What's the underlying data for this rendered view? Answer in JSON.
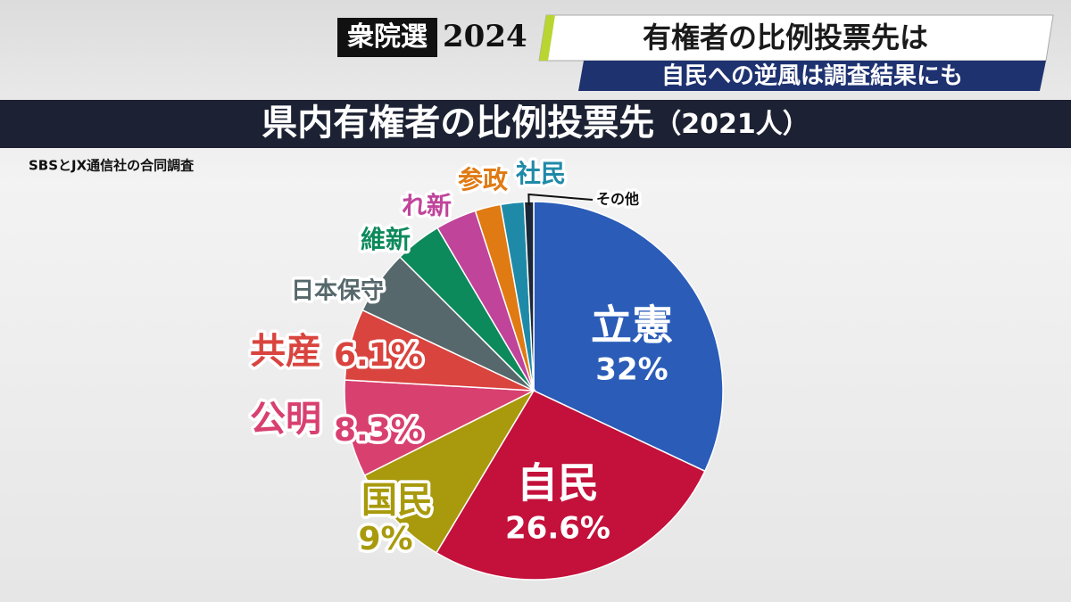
{
  "header": {
    "badge": "衆院選",
    "year": "2024",
    "headline": "有権者の比例投票先は",
    "subheadline": "自民への逆風は調査結果にも"
  },
  "chart_data": {
    "type": "pie",
    "title": "県内有権者の比例投票先",
    "subtitle": "（2021人）",
    "source": "SBSとJX通信社の合同調査",
    "categories": [
      "立憲",
      "自民",
      "国民",
      "公明",
      "共産",
      "日本保守",
      "維新",
      "れ新",
      "参政",
      "社民",
      "その他"
    ],
    "values": [
      32,
      26.6,
      9,
      8.3,
      6.1,
      5.5,
      4,
      3.5,
      2.2,
      2,
      0.8
    ],
    "value_labels": [
      "32%",
      "26.6%",
      "9%",
      "8.3%",
      "6.1%",
      null,
      null,
      null,
      null,
      null,
      null
    ],
    "colors": [
      "#2a5cb8",
      "#c3113b",
      "#a89a0c",
      "#d8406f",
      "#d9443e",
      "#56686b",
      "#0d8a5b",
      "#c0449a",
      "#e07a12",
      "#1f8aa8",
      "#1b2838"
    ]
  }
}
